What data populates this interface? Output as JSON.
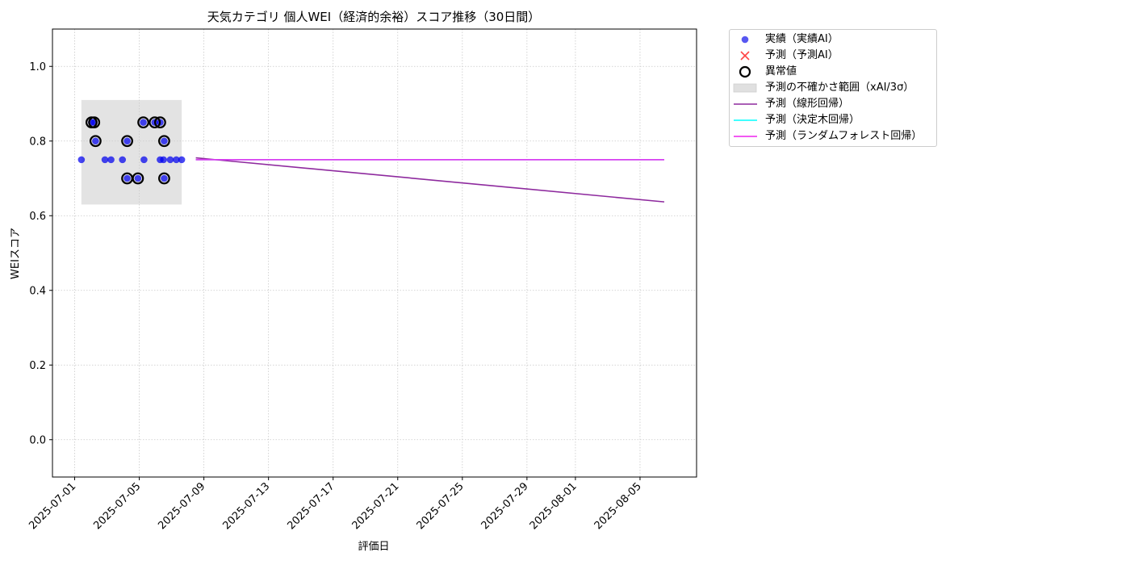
{
  "chart_data": {
    "type": "scatter",
    "title": "天気カテゴリ 個人WEI（経済的余裕）スコア推移（30日間）",
    "xlabel": "評価日",
    "ylabel": "WEIスコア",
    "ylim": [
      -0.1,
      1.1
    ],
    "xlim": [
      "2025-06-29T15:00",
      "2025-08-08T12:00"
    ],
    "yticks": [
      0.0,
      0.2,
      0.4,
      0.6,
      0.8,
      1.0
    ],
    "ytick_labels": [
      "0.0",
      "0.2",
      "0.4",
      "0.6",
      "0.8",
      "1.0"
    ],
    "xticks": [
      "2025-07-01",
      "2025-07-05",
      "2025-07-09",
      "2025-07-13",
      "2025-07-17",
      "2025-07-21",
      "2025-07-25",
      "2025-07-29",
      "2025-08-01",
      "2025-08-05"
    ],
    "grid": true,
    "legend_position": "outside-top-right",
    "series": [
      {
        "name": "実績（実績AI）",
        "kind": "scatter",
        "color": "#0000ee",
        "points": [
          {
            "x": "2025-07-01T10:00",
            "y": 0.75
          },
          {
            "x": "2025-07-02T01:00",
            "y": 0.85
          },
          {
            "x": "2025-07-02T05:00",
            "y": 0.85
          },
          {
            "x": "2025-07-02T07:00",
            "y": 0.8
          },
          {
            "x": "2025-07-02T21:00",
            "y": 0.75
          },
          {
            "x": "2025-07-03T06:00",
            "y": 0.75
          },
          {
            "x": "2025-07-03T23:00",
            "y": 0.75
          },
          {
            "x": "2025-07-04T06:00",
            "y": 0.8
          },
          {
            "x": "2025-07-04T06:00",
            "y": 0.7
          },
          {
            "x": "2025-07-04T22:00",
            "y": 0.7
          },
          {
            "x": "2025-07-05T06:00",
            "y": 0.85
          },
          {
            "x": "2025-07-05T07:00",
            "y": 0.75
          },
          {
            "x": "2025-07-05T23:00",
            "y": 0.85
          },
          {
            "x": "2025-07-06T07:00",
            "y": 0.85
          },
          {
            "x": "2025-07-06T07:00",
            "y": 0.75
          },
          {
            "x": "2025-07-06T12:00",
            "y": 0.75
          },
          {
            "x": "2025-07-06T13:00",
            "y": 0.8
          },
          {
            "x": "2025-07-06T13:00",
            "y": 0.7
          },
          {
            "x": "2025-07-06T22:00",
            "y": 0.75
          },
          {
            "x": "2025-07-07T07:00",
            "y": 0.75
          },
          {
            "x": "2025-07-07T15:00",
            "y": 0.75
          }
        ]
      },
      {
        "name": "異常値",
        "kind": "outlier",
        "color": "#000000",
        "points": [
          {
            "x": "2025-07-02T01:00",
            "y": 0.85
          },
          {
            "x": "2025-07-02T05:00",
            "y": 0.85
          },
          {
            "x": "2025-07-02T07:00",
            "y": 0.8
          },
          {
            "x": "2025-07-04T06:00",
            "y": 0.8
          },
          {
            "x": "2025-07-04T06:00",
            "y": 0.7
          },
          {
            "x": "2025-07-04T22:00",
            "y": 0.7
          },
          {
            "x": "2025-07-05T06:00",
            "y": 0.85
          },
          {
            "x": "2025-07-05T23:00",
            "y": 0.85
          },
          {
            "x": "2025-07-06T07:00",
            "y": 0.85
          },
          {
            "x": "2025-07-06T13:00",
            "y": 0.8
          },
          {
            "x": "2025-07-06T13:00",
            "y": 0.7
          }
        ]
      },
      {
        "name": "予測の不確かさ範囲（xAI/3σ）",
        "kind": "band",
        "color": "#cccccc",
        "x_range": [
          "2025-07-01T10:00",
          "2025-07-07T15:00"
        ],
        "y_range": [
          0.63,
          0.91
        ]
      },
      {
        "name": "予測（線形回帰）",
        "kind": "line",
        "color": "#8e2a9e",
        "points": [
          {
            "x": "2025-07-08T12:00",
            "y": 0.755
          },
          {
            "x": "2025-08-06T12:00",
            "y": 0.637
          }
        ]
      },
      {
        "name": "予測（決定木回帰）",
        "kind": "line",
        "color": "#00ffff",
        "points": [
          {
            "x": "2025-07-08T12:00",
            "y": 0.75
          },
          {
            "x": "2025-08-06T12:00",
            "y": 0.75
          }
        ]
      },
      {
        "name": "予測（ランダムフォレスト回帰）",
        "kind": "line",
        "color": "#ee22ee",
        "points": [
          {
            "x": "2025-07-08T12:00",
            "y": 0.75
          },
          {
            "x": "2025-08-06T12:00",
            "y": 0.75
          }
        ]
      }
    ],
    "legend": [
      {
        "label": "実績（実績AI）",
        "marker": "dot",
        "color": "#3a3aee"
      },
      {
        "label": "予測（予測AI）",
        "marker": "x",
        "color": "#ff4444"
      },
      {
        "label": "異常値",
        "marker": "ring",
        "color": "#000000"
      },
      {
        "label": "予測の不確かさ範囲（xAI/3σ）",
        "marker": "patch",
        "color": "#e0e0e0"
      },
      {
        "label": "予測（線形回帰）",
        "marker": "line",
        "color": "#8e2a9e"
      },
      {
        "label": "予測（決定木回帰）",
        "marker": "line",
        "color": "#00ffff"
      },
      {
        "label": "予測（ランダムフォレスト回帰）",
        "marker": "line",
        "color": "#ee22ee"
      }
    ]
  }
}
